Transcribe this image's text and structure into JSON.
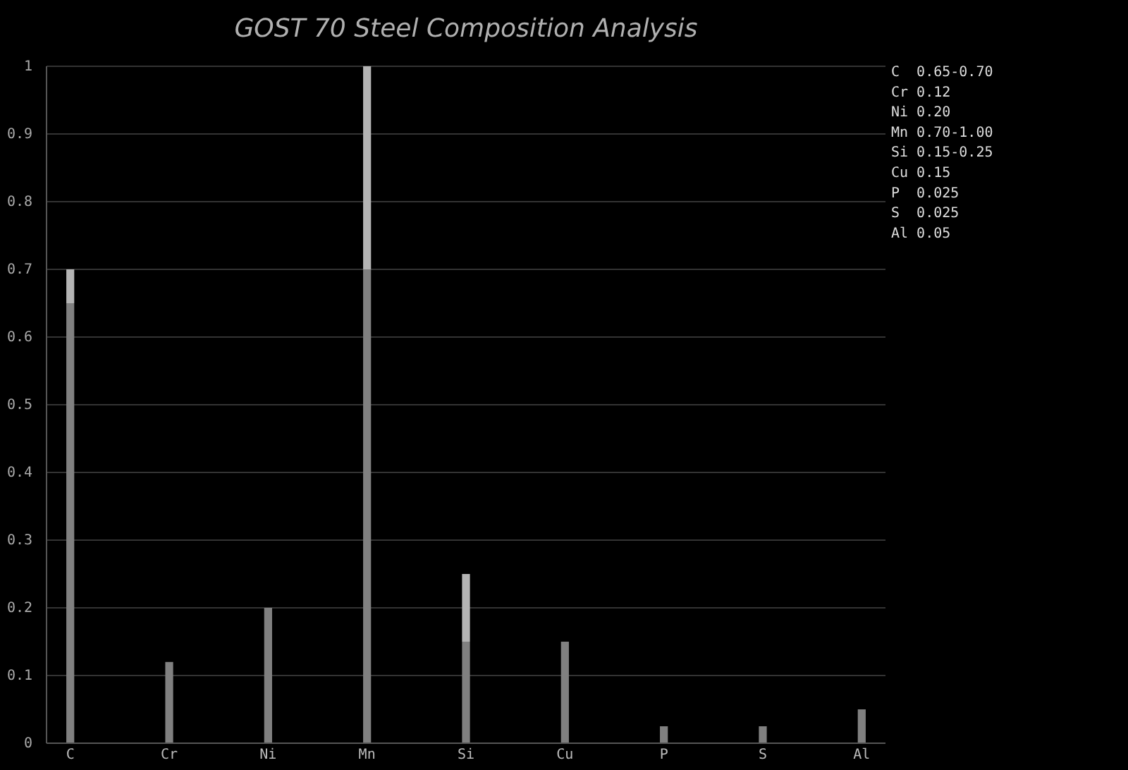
{
  "chart_data": {
    "type": "bar",
    "title": "GOST 70 Steel Composition Analysis",
    "categories": [
      "C",
      "Cr",
      "Ni",
      "Mn",
      "Si",
      "Cu",
      "P",
      "S",
      "Al"
    ],
    "stacked": true,
    "series": [
      {
        "color": "#808080",
        "values": [
          0.65,
          0.12,
          0.2,
          0.7,
          0.15,
          0.15,
          0.025,
          0.025,
          0.05
        ]
      },
      {
        "color": "#b4b4b4",
        "values": [
          0.05,
          null,
          null,
          0.3,
          0.1,
          null,
          null,
          null,
          null
        ]
      }
    ],
    "ylim": [
      0,
      1
    ],
    "yticks": [
      0,
      0.1,
      0.2,
      0.3,
      0.4,
      0.5,
      0.6,
      0.7,
      0.8,
      0.9,
      1
    ],
    "grid": "y",
    "annotations": [
      "C  0.65-0.70",
      "Cr 0.12",
      "Ni 0.20",
      "Mn 0.70-1.00",
      "Si 0.15-0.25",
      "Cu 0.15",
      "P  0.025",
      "S  0.025",
      "Al 0.05"
    ]
  }
}
